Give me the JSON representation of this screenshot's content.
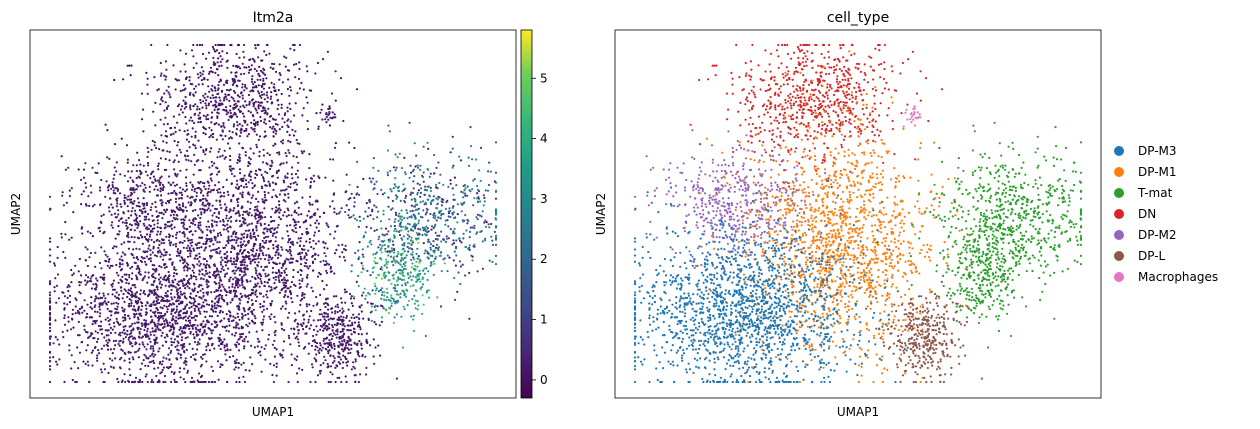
{
  "chart_data": [
    {
      "type": "scatter",
      "title": "Itm2a",
      "xlabel": "UMAP1",
      "ylabel": "UMAP2",
      "colormap": "viridis",
      "colorbar": {
        "ticks": [
          0,
          1,
          2,
          3,
          4,
          5
        ],
        "range": [
          -0.3,
          5.8
        ]
      },
      "x_ticks": false,
      "y_ticks": false,
      "description_regions": [
        {
          "cluster": "large left mass",
          "expression": [
            0,
            0.3
          ]
        },
        {
          "cluster": "right upper",
          "expression": [
            0,
            3.5
          ]
        },
        {
          "cluster": "right lower",
          "expression": [
            2.5,
            5
          ]
        },
        {
          "cluster": "bottom middle",
          "expression": [
            0,
            0.3
          ]
        }
      ]
    },
    {
      "type": "scatter",
      "title": "cell_type",
      "xlabel": "UMAP1",
      "ylabel": "UMAP2",
      "x_ticks": false,
      "y_ticks": false,
      "legend_placement": "right",
      "categories": [
        {
          "name": "DP-M3",
          "color": "#1f77b4"
        },
        {
          "name": "DP-M1",
          "color": "#ff7f0e"
        },
        {
          "name": "T-mat",
          "color": "#2ca02c"
        },
        {
          "name": "DN",
          "color": "#d62728"
        },
        {
          "name": "DP-M2",
          "color": "#9467bd"
        },
        {
          "name": "DP-L",
          "color": "#8c564b"
        },
        {
          "name": "Macrophages",
          "color": "#e377c2"
        }
      ]
    }
  ]
}
